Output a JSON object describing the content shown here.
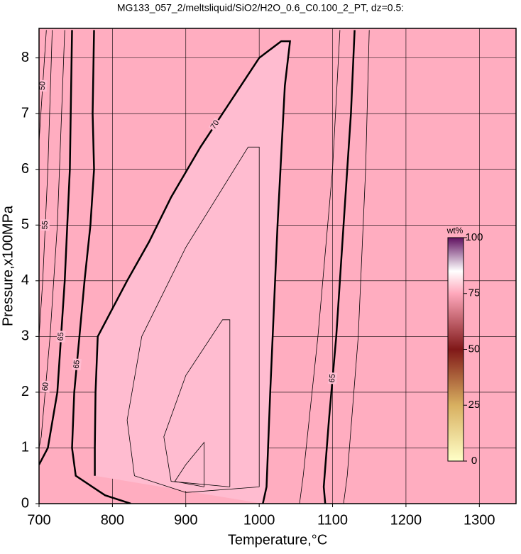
{
  "chart_data": {
    "type": "contour",
    "title": "MG133_057_2/meltsliquid/SiO2/H2O_0.6_C0.100_2_PT, dz=0.5:",
    "x_label": "Temperature,°C",
    "y_label": "Pressure,x100MPa",
    "xlim": [
      700,
      1350
    ],
    "ylim": [
      0,
      8.53
    ],
    "xticks": [
      700,
      800,
      900,
      1000,
      1100,
      1200,
      1300
    ],
    "yticks": [
      0,
      1,
      2,
      3,
      4,
      5,
      6,
      7,
      8
    ],
    "grid": true,
    "contours": [
      {
        "level": 70,
        "thick": true,
        "labeled": true,
        "x": [
          1005,
          1010,
          1015,
          1025,
          1035,
          1042,
          1030,
          1000,
          960,
          920,
          880,
          850,
          820,
          800,
          780,
          777,
          776,
          776
        ],
        "y": [
          0,
          0.3,
          2,
          5,
          7.5,
          8.3,
          8.3,
          8.0,
          7.2,
          6.4,
          5.5,
          4.7,
          4.0,
          3.5,
          3.0,
          2.0,
          1.0,
          0.5
        ]
      },
      {
        "level": 65,
        "thick": true,
        "labeled": true,
        "x": [
          745,
          742,
          735,
          725,
          712,
          700
        ],
        "y": [
          8.5,
          6.0,
          4.0,
          2.0,
          1.0,
          0.7
        ]
      },
      {
        "level": 65,
        "thick": true,
        "labeled": true,
        "x": [
          775,
          773,
          775,
          770,
          762,
          755,
          748,
          745,
          750,
          790,
          825
        ],
        "y": [
          8.5,
          7.0,
          6.0,
          5.0,
          4.0,
          3.0,
          2.0,
          1.0,
          0.5,
          0.15,
          0
        ]
      },
      {
        "level": 65,
        "thick": true,
        "labeled": true,
        "x": [
          1130,
          1125,
          1115,
          1105,
          1095,
          1088,
          1090
        ],
        "y": [
          8.5,
          7.0,
          5.0,
          3.0,
          1.5,
          0.3,
          0
        ]
      },
      {
        "level": 60,
        "thick": false,
        "labeled": true,
        "x": [
          735,
          725,
          715,
          703,
          700
        ],
        "y": [
          8.5,
          5.0,
          3.0,
          1.2,
          1.0
        ]
      },
      {
        "level": 55,
        "thick": false,
        "labeled": true,
        "x": [
          718,
          712,
          705,
          700
        ],
        "y": [
          8.5,
          6.0,
          4.0,
          3.0
        ]
      },
      {
        "level": 50,
        "thick": false,
        "labeled": true,
        "x": [
          710,
          700
        ],
        "y": [
          8.5,
          6.5
        ]
      },
      {
        "level": 71,
        "thick": false,
        "labeled": false,
        "x": [
          1000,
          1000,
          985,
          900,
          840,
          820,
          830,
          900,
          1000
        ],
        "y": [
          0.3,
          6.4,
          6.4,
          4.6,
          3.0,
          1.5,
          0.5,
          0.2,
          0.3
        ]
      },
      {
        "level": 72,
        "thick": false,
        "labeled": false,
        "x": [
          960,
          960,
          950,
          900,
          870,
          880,
          960
        ],
        "y": [
          0.3,
          3.3,
          3.3,
          2.3,
          1.2,
          0.4,
          0.3
        ]
      },
      {
        "level": 73,
        "thick": false,
        "labeled": false,
        "x": [
          925,
          925,
          900,
          885,
          925
        ],
        "y": [
          0.3,
          1.1,
          0.7,
          0.4,
          0.3
        ]
      },
      {
        "level": 68,
        "thick": false,
        "labeled": false,
        "x": [
          1110,
          1100,
          1080,
          1060,
          1055
        ],
        "y": [
          8.5,
          6.0,
          3.0,
          0.5,
          0
        ]
      },
      {
        "level": 64,
        "thick": false,
        "labeled": false,
        "x": [
          1150,
          1145,
          1135,
          1120,
          1115
        ],
        "y": [
          8.5,
          6.0,
          3.0,
          0.5,
          0
        ]
      }
    ],
    "colorbar": {
      "label": "wt%",
      "lim": [
        0,
        100
      ],
      "ticks": [
        0,
        25,
        50,
        75,
        100
      ]
    }
  }
}
